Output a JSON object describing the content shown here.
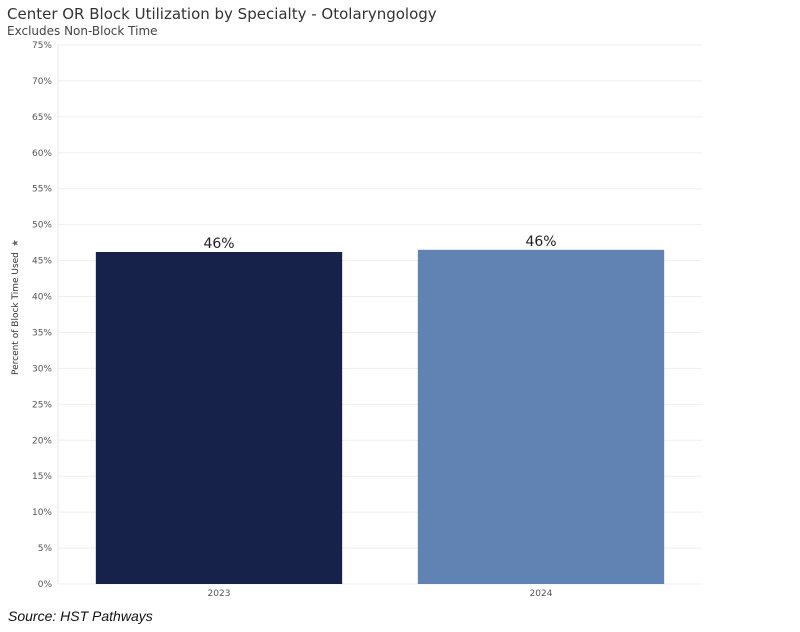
{
  "chart_data": {
    "type": "bar",
    "title": "Center OR Block Utilization by Specialty - Otolaryngology",
    "subtitle": "Excludes Non-Block Time",
    "xlabel": "",
    "ylabel": "Percent of Block Time Used",
    "categories": [
      "2023",
      "2024"
    ],
    "values": [
      46.2,
      46.5
    ],
    "data_labels": [
      "46%",
      "46%"
    ],
    "colors": [
      "#16224a",
      "#6183b3"
    ],
    "ylim": [
      0,
      75
    ],
    "yticks": [
      0,
      5,
      10,
      15,
      20,
      25,
      30,
      35,
      40,
      45,
      50,
      55,
      60,
      65,
      70,
      75
    ],
    "ytick_labels": [
      "0%",
      "5%",
      "10%",
      "15%",
      "20%",
      "25%",
      "30%",
      "35%",
      "40%",
      "45%",
      "50%",
      "55%",
      "60%",
      "65%",
      "70%",
      "75%"
    ],
    "grid": true,
    "legend": "none"
  },
  "source": "Source: HST Pathways",
  "icons": {
    "ylabel_icon": "sort-icon"
  }
}
